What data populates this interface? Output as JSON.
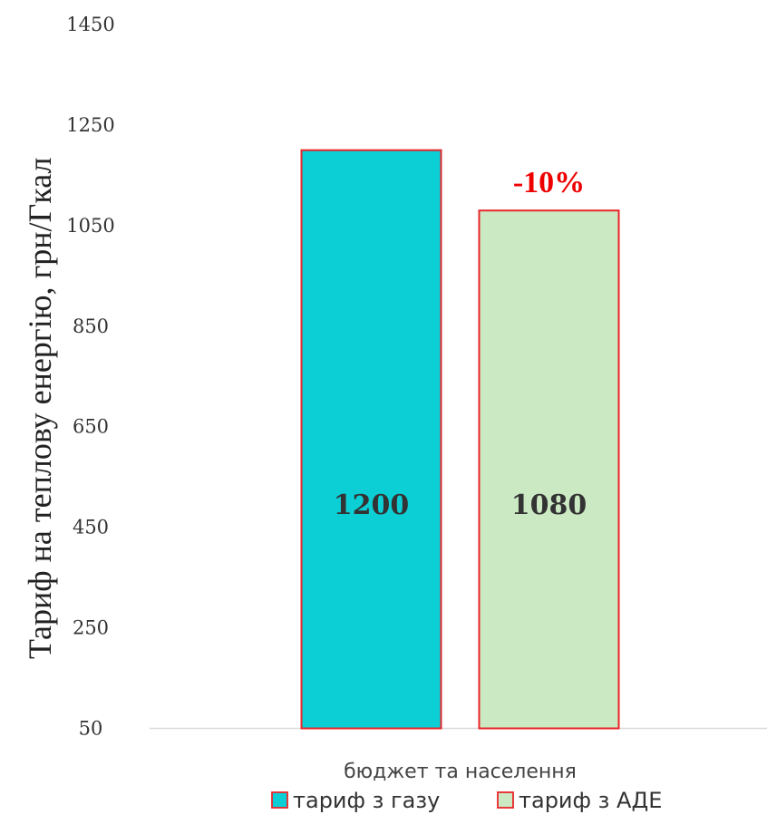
{
  "colors": {
    "bar_outline": "#e8262a",
    "axis_line": "#d9d9d9",
    "annotation": "#ee0000"
  },
  "chart_data": {
    "type": "bar",
    "title": "",
    "xlabel": "",
    "ylabel": "Тариф на теплову енергію, грн/Гкал",
    "ylim": [
      50,
      1450
    ],
    "yticks": [
      50,
      250,
      450,
      650,
      850,
      1050,
      1250,
      1450
    ],
    "grid": false,
    "legend_position": "bottom",
    "categories": [
      "бюджет та населення"
    ],
    "series": [
      {
        "name": "тариф з газу",
        "values": [
          1200
        ],
        "color": "#0ccfd6",
        "data_label": "1200"
      },
      {
        "name": "тариф з АДЕ",
        "values": [
          1080
        ],
        "color": "#cbe9c2",
        "data_label": "1080"
      }
    ],
    "annotations": [
      {
        "text": "-10%",
        "series": 1
      }
    ]
  }
}
